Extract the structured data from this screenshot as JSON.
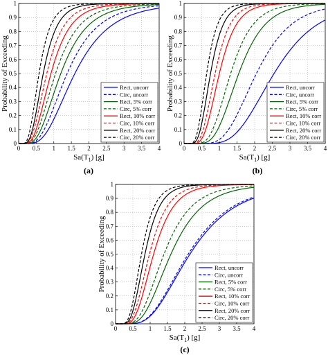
{
  "chart_data": [
    {
      "type": "line",
      "panel_label": "(a)",
      "xlabel_main": "Sa(T",
      "xlabel_sub": "1",
      "xlabel_tail": ") [g]",
      "ylabel": "Probability of Exceeding",
      "xlim": [
        0,
        4
      ],
      "ylim": [
        0,
        1
      ],
      "xticks": [
        "0",
        "0.5",
        "1",
        "1.5",
        "2",
        "2.5",
        "3",
        "3.5",
        "4"
      ],
      "yticks": [
        "0",
        "0.1",
        "0.2",
        "0.3",
        "0.4",
        "0.5",
        "0.6",
        "0.7",
        "0.8",
        "0.9",
        "1"
      ],
      "grid": true,
      "legend_position": "bottom-right",
      "series": [
        {
          "name": "Rect, uncorr",
          "color": "#0000ff",
          "dash": "solid",
          "median": 1.6,
          "beta": 0.5
        },
        {
          "name": "Circ, uncorr",
          "color": "#0000ff",
          "dash": "dashed",
          "median": 1.38,
          "beta": 0.5
        },
        {
          "name": "Rect, 5% corr",
          "color": "#006400",
          "dash": "solid",
          "median": 1.2,
          "beta": 0.5
        },
        {
          "name": "Circ, 5% corr",
          "color": "#006400",
          "dash": "dashed",
          "median": 1.05,
          "beta": 0.5
        },
        {
          "name": "Rect, 10% corr",
          "color": "#ff0000",
          "dash": "solid",
          "median": 0.92,
          "beta": 0.48
        },
        {
          "name": "Circ, 10% corr",
          "color": "#ff0000",
          "dash": "dashed",
          "median": 0.8,
          "beta": 0.48
        },
        {
          "name": "Rect, 20% corr",
          "color": "#000000",
          "dash": "solid",
          "median": 0.7,
          "beta": 0.45
        },
        {
          "name": "Circ, 20% corr",
          "color": "#000000",
          "dash": "dashed",
          "median": 0.58,
          "beta": 0.45
        }
      ]
    },
    {
      "type": "line",
      "panel_label": "(b)",
      "xlabel_main": "Sa(T",
      "xlabel_sub": "1",
      "xlabel_tail": ") [g]",
      "ylabel": "Probability of Exceeding",
      "xlim": [
        0,
        4
      ],
      "ylim": [
        0,
        1
      ],
      "xticks": [
        "0",
        "0.5",
        "1",
        "1.5",
        "2",
        "2.5",
        "3",
        "3.5",
        "4"
      ],
      "yticks": [
        "0",
        "0.1",
        "0.2",
        "0.3",
        "0.4",
        "0.5",
        "0.6",
        "0.7",
        "0.8",
        "0.9",
        "1"
      ],
      "grid": true,
      "legend_position": "bottom-right",
      "series": [
        {
          "name": "Rect, uncorr",
          "color": "#0000ff",
          "dash": "solid",
          "median": 2.55,
          "beta": 0.38
        },
        {
          "name": "Circ, uncorr",
          "color": "#0000ff",
          "dash": "dashed",
          "median": 2.05,
          "beta": 0.38
        },
        {
          "name": "Rect, 5% corr",
          "color": "#006400",
          "dash": "solid",
          "median": 1.55,
          "beta": 0.38
        },
        {
          "name": "Circ, 5% corr",
          "color": "#006400",
          "dash": "dashed",
          "median": 1.32,
          "beta": 0.38
        },
        {
          "name": "Rect, 10% corr",
          "color": "#ff0000",
          "dash": "solid",
          "median": 1.0,
          "beta": 0.38
        },
        {
          "name": "Circ, 10% corr",
          "color": "#ff0000",
          "dash": "dashed",
          "median": 0.88,
          "beta": 0.38
        },
        {
          "name": "Rect, 20% corr",
          "color": "#000000",
          "dash": "solid",
          "median": 0.75,
          "beta": 0.38
        },
        {
          "name": "Circ, 20% corr",
          "color": "#000000",
          "dash": "dashed",
          "median": 0.64,
          "beta": 0.38
        }
      ]
    },
    {
      "type": "line",
      "panel_label": "(c)",
      "xlabel_main": "Sa(T",
      "xlabel_sub": "1",
      "xlabel_tail": ") [g]",
      "ylabel": "Probability of Exceeding",
      "xlim": [
        0,
        4
      ],
      "ylim": [
        0,
        1
      ],
      "xticks": [
        "0",
        "0.5",
        "1",
        "1.5",
        "2",
        "2.5",
        "3",
        "3.5",
        "4"
      ],
      "yticks": [
        "0",
        "0.1",
        "0.2",
        "0.3",
        "0.4",
        "0.5",
        "0.6",
        "0.7",
        "0.8",
        "0.9",
        "1"
      ],
      "grid": true,
      "legend_position": "bottom-right",
      "series": [
        {
          "name": "Rect, uncorr",
          "color": "#0000ff",
          "dash": "solid",
          "median": 2.15,
          "beta": 0.48
        },
        {
          "name": "Circ, uncorr",
          "color": "#0000ff",
          "dash": "dashed",
          "median": 2.1,
          "beta": 0.48
        },
        {
          "name": "Rect, 5% corr",
          "color": "#006400",
          "dash": "solid",
          "median": 1.6,
          "beta": 0.45
        },
        {
          "name": "Circ, 5% corr",
          "color": "#006400",
          "dash": "dashed",
          "median": 1.4,
          "beta": 0.45
        },
        {
          "name": "Rect, 10% corr",
          "color": "#ff0000",
          "dash": "solid",
          "median": 1.1,
          "beta": 0.42
        },
        {
          "name": "Circ, 10% corr",
          "color": "#ff0000",
          "dash": "dashed",
          "median": 0.98,
          "beta": 0.42
        },
        {
          "name": "Rect, 20% corr",
          "color": "#000000",
          "dash": "solid",
          "median": 0.85,
          "beta": 0.4
        },
        {
          "name": "Circ, 20% corr",
          "color": "#000000",
          "dash": "dashed",
          "median": 0.75,
          "beta": 0.4
        }
      ]
    }
  ]
}
